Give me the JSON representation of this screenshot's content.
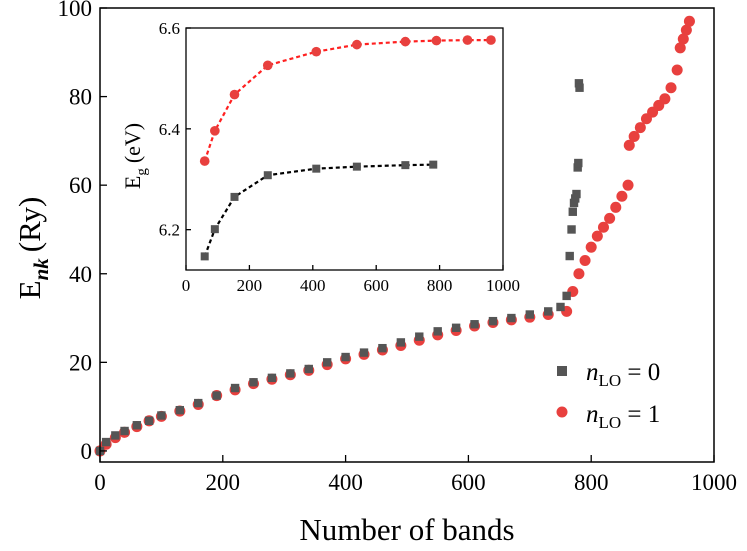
{
  "colors": {
    "series0": "#555555",
    "series1": "#e8403e",
    "fit1": "#ff2020",
    "fit0": "#000000",
    "axis": "#000000"
  },
  "chart_data": [
    {
      "id": "main",
      "type": "scatter",
      "xlabel": "Number of bands",
      "ylabel": "E",
      "ylabel_sub": "nk",
      "ylabel_unit": "(Ry)",
      "xlim": [
        0,
        1000
      ],
      "ylim": [
        -2.5,
        100
      ],
      "xticks": [
        0,
        200,
        400,
        600,
        800,
        1000
      ],
      "yticks": [
        0,
        20,
        40,
        60,
        80,
        100
      ],
      "xtick_labels": [
        "0",
        "200",
        "400",
        "600",
        "800",
        "1000"
      ],
      "ytick_labels": [
        "0",
        "20",
        "40",
        "60",
        "80",
        "100"
      ],
      "grid": false,
      "legend_position": "bottom-right",
      "legend": [
        {
          "label": "n",
          "label_sub": "LO",
          "label_rest": " = 0",
          "marker": "square"
        },
        {
          "label": "n",
          "label_sub": "LO",
          "label_rest": " = 1",
          "marker": "circle"
        }
      ],
      "series": [
        {
          "label_ref": "n_LO = 0",
          "marker": "square",
          "x": [
            0,
            10,
            25,
            40,
            60,
            80,
            100,
            130,
            160,
            190,
            220,
            250,
            280,
            310,
            340,
            370,
            400,
            430,
            460,
            490,
            520,
            550,
            580,
            610,
            640,
            670,
            700,
            730,
            750,
            760,
            765,
            768,
            770,
            772,
            774,
            776,
            778,
            779,
            780,
            781
          ],
          "y": [
            0,
            2,
            3.5,
            4.5,
            5.8,
            6.8,
            8,
            9.2,
            10.8,
            12.5,
            14.2,
            15.5,
            16.5,
            17.5,
            18.5,
            20,
            21.2,
            22.2,
            23.2,
            24.5,
            25.8,
            27,
            27.8,
            28.6,
            29.3,
            30,
            30.8,
            31.5,
            32.5,
            35,
            44,
            50,
            54,
            56,
            57,
            58,
            64,
            65,
            83,
            82
          ]
        },
        {
          "label_ref": "n_LO = 1",
          "marker": "circle",
          "x": [
            0,
            10,
            25,
            40,
            60,
            80,
            100,
            130,
            160,
            190,
            220,
            250,
            280,
            310,
            340,
            370,
            400,
            430,
            460,
            490,
            520,
            550,
            580,
            610,
            640,
            670,
            700,
            730,
            760,
            770,
            780,
            790,
            800,
            810,
            820,
            830,
            840,
            850,
            860,
            862,
            870,
            880,
            890,
            900,
            910,
            920,
            930,
            940,
            945,
            950,
            955,
            960
          ],
          "y": [
            0,
            1.5,
            3,
            4.2,
            5.5,
            6.8,
            7.8,
            9,
            10.5,
            12.5,
            13.8,
            15.2,
            16.2,
            17.2,
            18.2,
            19.5,
            20.8,
            21.8,
            22.8,
            23.8,
            25,
            26.2,
            27.2,
            28.2,
            29,
            29.6,
            30.2,
            30.8,
            31.5,
            36,
            40,
            43,
            46,
            48.5,
            50.5,
            52.5,
            55,
            57.5,
            60,
            69,
            71,
            73,
            75,
            76.5,
            78,
            79.5,
            82,
            86,
            91,
            93,
            95,
            97
          ]
        }
      ]
    },
    {
      "id": "inset",
      "type": "scatter",
      "xlabel": "",
      "ylabel": "E",
      "ylabel_sub": "g",
      "ylabel_unit": "(eV)",
      "xlim": [
        0,
        1000
      ],
      "ylim": [
        6.12,
        6.6
      ],
      "xticks": [
        0,
        200,
        400,
        600,
        800,
        1000
      ],
      "yticks": [
        6.2,
        6.4,
        6.6
      ],
      "xtick_labels": [
        "0",
        "200",
        "400",
        "600",
        "800",
        "1000"
      ],
      "ytick_labels": [
        "6.2",
        "6.4",
        "6.6"
      ],
      "grid": false,
      "series": [
        {
          "label_ref": "n_LO = 1",
          "marker": "circle",
          "line": "dotted",
          "x": [
            59,
            91,
            153,
            258,
            411,
            539,
            692,
            790,
            888,
            962
          ],
          "y": [
            6.336,
            6.396,
            6.468,
            6.526,
            6.553,
            6.567,
            6.573,
            6.575,
            6.576,
            6.576
          ]
        },
        {
          "label_ref": "n_LO = 0",
          "marker": "square",
          "line": "dotted",
          "x": [
            59,
            91,
            153,
            258,
            411,
            539,
            692,
            780
          ],
          "y": [
            6.147,
            6.201,
            6.265,
            6.308,
            6.321,
            6.325,
            6.328,
            6.329
          ]
        }
      ]
    }
  ]
}
